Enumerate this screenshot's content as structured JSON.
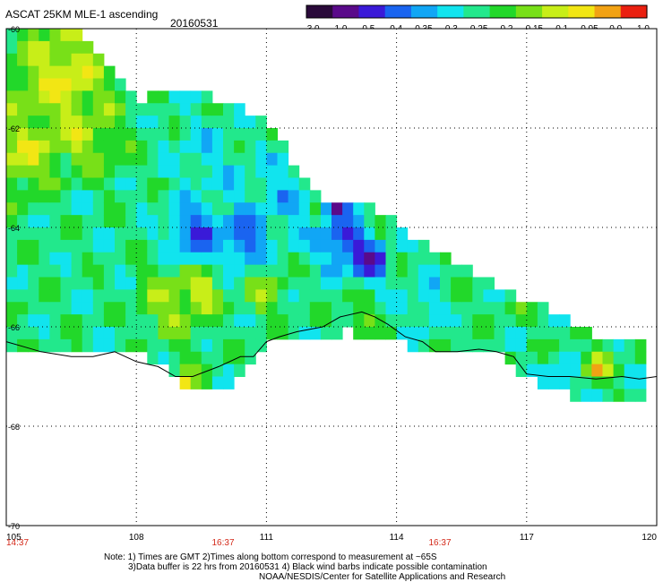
{
  "header": {
    "title": "ASCAT 25KM MLE-1 ascending",
    "date": "20160531"
  },
  "colorbar": {
    "labels": [
      "-3.0",
      "-1.0",
      "-0.5",
      "-0.4",
      "-0.35",
      "-0.3",
      "-0.25",
      "-0.2",
      "-0.15",
      "-0.1",
      "-0.05",
      "0.0",
      "1.0"
    ],
    "colors": [
      "#2a0a3a",
      "#5a0a8a",
      "#3a1ad8",
      "#1a64f0",
      "#11a6f5",
      "#11e4ee",
      "#22e88c",
      "#22d82a",
      "#78e018",
      "#c8ee18",
      "#f2e614",
      "#f2a214",
      "#ea2010"
    ]
  },
  "chart_data": {
    "type": "heatmap",
    "x_ticks": [
      "105",
      "108",
      "111",
      "114",
      "117",
      "120"
    ],
    "y_ticks": [
      "-60",
      "-62",
      "-64",
      "-66",
      "-68",
      "-70"
    ],
    "xlim": [
      105,
      120
    ],
    "ylim": [
      -70,
      -60
    ],
    "grid": true,
    "time_labels": [
      {
        "lon": 105,
        "text": "14:37"
      },
      {
        "lon": 110,
        "text": "16:37"
      },
      {
        "lon": 115,
        "text": "16:37"
      }
    ],
    "cell_deg": 0.25,
    "swath": {
      "left_top": [
        [
          105,
          -60.0
        ],
        [
          106.5,
          -60.0
        ],
        [
          108,
          -61.4
        ],
        [
          109.5,
          -61.3
        ],
        [
          111,
          -61.8
        ],
        [
          112,
          -63.3
        ],
        [
          112.5,
          -63.5
        ],
        [
          113.5,
          -63.6
        ],
        [
          114.5,
          -64.3
        ],
        [
          115.5,
          -64.8
        ],
        [
          116.5,
          -65.3
        ],
        [
          117.5,
          -65.6
        ],
        [
          118.5,
          -66.2
        ],
        [
          119,
          -66.2
        ],
        [
          119.5,
          -66.2
        ]
      ],
      "bottom": [
        [
          105,
          -66.6
        ],
        [
          106,
          -66.6
        ],
        [
          107,
          -66.6
        ],
        [
          108,
          -66.6
        ],
        [
          108.6,
          -66.7
        ],
        [
          109,
          -67.3
        ],
        [
          110,
          -67.3
        ],
        [
          110.5,
          -67.0
        ],
        [
          111,
          -66.3
        ],
        [
          112,
          -66.2
        ],
        [
          113,
          -66.1
        ],
        [
          114,
          -66.3
        ],
        [
          114.5,
          -66.5
        ],
        [
          115.5,
          -66.6
        ],
        [
          116.5,
          -66.6
        ],
        [
          117,
          -67.0
        ],
        [
          118,
          -67.4
        ],
        [
          119,
          -67.4
        ],
        [
          119.5,
          -67.4
        ]
      ]
    },
    "field_base": -0.22,
    "field_features": [
      {
        "lon": 106.3,
        "lat": -61.0,
        "value": -0.05,
        "spread": 1.1
      },
      {
        "lon": 105.4,
        "lat": -62.5,
        "value": -0.07,
        "spread": 0.7
      },
      {
        "lon": 106.8,
        "lat": -62.2,
        "value": -0.1,
        "spread": 0.7
      },
      {
        "lon": 109.4,
        "lat": -65.3,
        "value": 0.0,
        "spread": 0.45
      },
      {
        "lon": 108.8,
        "lat": -65.5,
        "value": -0.1,
        "spread": 0.7
      },
      {
        "lon": 109.3,
        "lat": -64.1,
        "value": -0.4,
        "spread": 0.6
      },
      {
        "lon": 110.5,
        "lat": -64.2,
        "value": -0.42,
        "spread": 0.5
      },
      {
        "lon": 109.6,
        "lat": -62.6,
        "value": -0.28,
        "spread": 0.8
      },
      {
        "lon": 111.3,
        "lat": -63.5,
        "value": -0.3,
        "spread": 0.8
      },
      {
        "lon": 112.8,
        "lat": -64.3,
        "value": -0.42,
        "spread": 0.55
      },
      {
        "lon": 113.4,
        "lat": -64.7,
        "value": -0.5,
        "spread": 0.35
      },
      {
        "lon": 112.6,
        "lat": -63.6,
        "value": -0.6,
        "spread": 0.2
      },
      {
        "lon": 111.0,
        "lat": -65.4,
        "value": -0.12,
        "spread": 0.45
      },
      {
        "lon": 113.2,
        "lat": -65.8,
        "value": -0.1,
        "spread": 0.3
      },
      {
        "lon": 114.8,
        "lat": -65.6,
        "value": -0.3,
        "spread": 0.6
      },
      {
        "lon": 116.0,
        "lat": -65.6,
        "value": -0.2,
        "spread": 0.9
      },
      {
        "lon": 118.6,
        "lat": -66.8,
        "value": -0.02,
        "spread": 0.3
      },
      {
        "lon": 117.8,
        "lat": -67.2,
        "value": -0.32,
        "spread": 0.4
      },
      {
        "lon": 109.1,
        "lat": -67.2,
        "value": -0.02,
        "spread": 0.3
      }
    ],
    "coastline": [
      [
        105,
        -66.3
      ],
      [
        105.4,
        -66.4
      ],
      [
        105.8,
        -66.5
      ],
      [
        106.5,
        -66.6
      ],
      [
        107,
        -66.6
      ],
      [
        107.5,
        -66.5
      ],
      [
        108,
        -66.7
      ],
      [
        108.5,
        -66.8
      ],
      [
        108.9,
        -67.0
      ],
      [
        109.3,
        -67.0
      ],
      [
        109.9,
        -66.8
      ],
      [
        110.4,
        -66.6
      ],
      [
        110.7,
        -66.6
      ],
      [
        111.0,
        -66.3
      ],
      [
        111.3,
        -66.2
      ],
      [
        111.7,
        -66.1
      ],
      [
        112.3,
        -66.0
      ],
      [
        112.7,
        -65.8
      ],
      [
        113.2,
        -65.7
      ],
      [
        113.5,
        -65.8
      ],
      [
        113.8,
        -65.95
      ],
      [
        114.2,
        -66.2
      ],
      [
        114.6,
        -66.3
      ],
      [
        114.9,
        -66.5
      ],
      [
        115.4,
        -66.5
      ],
      [
        115.9,
        -66.45
      ],
      [
        116.3,
        -66.5
      ],
      [
        116.7,
        -66.6
      ],
      [
        117.0,
        -66.95
      ],
      [
        117.5,
        -67.0
      ],
      [
        118.0,
        -67.0
      ],
      [
        118.6,
        -67.05
      ],
      [
        119.2,
        -67.0
      ],
      [
        119.6,
        -67.05
      ],
      [
        120,
        -67.0
      ]
    ],
    "annotations": {
      "note_line1": "Note: 1) Times are GMT 2)Times along bottom correspond to measurement at ~65S",
      "note_line2": "3)Data buffer is 22 hrs from 20160531 4) Black wind barbs indicate possible contamination",
      "credit": "NOAA/NESDIS/Center for Satellite Applications and Research"
    }
  }
}
